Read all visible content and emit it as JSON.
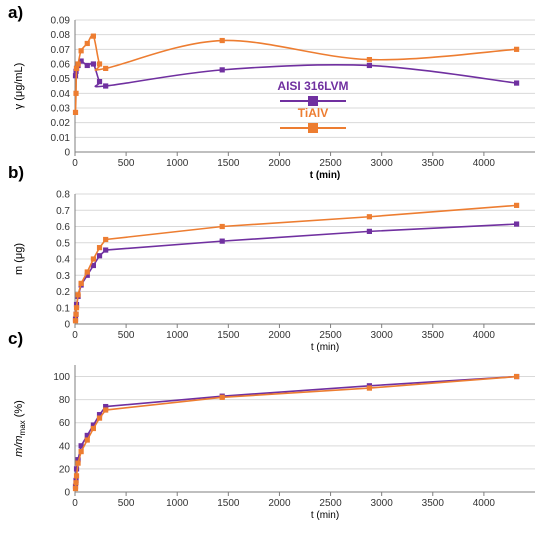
{
  "chart_data": [
    {
      "type": "line",
      "panel_label": "a)",
      "ylabel": "γ (μg/mL)",
      "xlabel": "t (min)",
      "xlim": [
        0,
        4500
      ],
      "ylim": [
        0,
        0.09
      ],
      "xticks": [
        0,
        500,
        1000,
        1500,
        2000,
        2500,
        3000,
        3500,
        4000
      ],
      "yticks": [
        0,
        0.01,
        0.02,
        0.03,
        0.04,
        0.05,
        0.06,
        0.07,
        0.08,
        0.09
      ],
      "ytick_labels": [
        "0",
        "0.01",
        "0.02",
        "0.03",
        "0.04",
        "0.05",
        "0.06",
        "0.07",
        "0.08",
        "0.09"
      ],
      "legend": {
        "placement": "center",
        "entries": [
          "AISI 316LVM",
          "TiAlV"
        ]
      },
      "series": [
        {
          "name": "AISI 316LVM",
          "color": "#7030A0",
          "x": [
            5,
            10,
            15,
            30,
            60,
            120,
            180,
            240,
            300,
            1440,
            2880,
            4320
          ],
          "y": [
            0.052,
            0.055,
            0.057,
            0.059,
            0.062,
            0.059,
            0.06,
            0.048,
            0.045,
            0.056,
            0.059,
            0.047
          ]
        },
        {
          "name": "TiAlV",
          "color": "#ED7D31",
          "x": [
            5,
            10,
            15,
            30,
            60,
            120,
            180,
            240,
            300,
            1440,
            2880,
            4320
          ],
          "y": [
            0.027,
            0.04,
            0.057,
            0.06,
            0.069,
            0.074,
            0.079,
            0.06,
            0.057,
            0.076,
            0.063,
            0.07
          ]
        }
      ]
    },
    {
      "type": "line",
      "panel_label": "b)",
      "ylabel": "m (μg)",
      "xlabel": "t (min)",
      "xlim": [
        0,
        4500
      ],
      "ylim": [
        0,
        0.8
      ],
      "xticks": [
        0,
        500,
        1000,
        1500,
        2000,
        2500,
        3000,
        3500,
        4000
      ],
      "yticks": [
        0,
        0.1,
        0.2,
        0.3,
        0.4,
        0.5,
        0.6,
        0.7,
        0.8
      ],
      "ytick_labels": [
        "0",
        "0.1",
        "0.2",
        "0.3",
        "0.4",
        "0.5",
        "0.6",
        "0.7",
        "0.8"
      ],
      "series": [
        {
          "name": "AISI 316LVM",
          "color": "#7030A0",
          "x": [
            5,
            10,
            15,
            30,
            60,
            120,
            180,
            240,
            300,
            1440,
            2880,
            4320
          ],
          "y": [
            0.03,
            0.06,
            0.12,
            0.17,
            0.24,
            0.3,
            0.36,
            0.42,
            0.455,
            0.51,
            0.57,
            0.615
          ]
        },
        {
          "name": "TiAlV",
          "color": "#ED7D31",
          "x": [
            5,
            10,
            15,
            30,
            60,
            120,
            180,
            240,
            300,
            1440,
            2880,
            4320
          ],
          "y": [
            0.02,
            0.06,
            0.1,
            0.18,
            0.25,
            0.32,
            0.4,
            0.47,
            0.52,
            0.6,
            0.66,
            0.73
          ]
        }
      ]
    },
    {
      "type": "line",
      "panel_label": "c)",
      "ylabel": "m/m_max (%)",
      "xlabel": "t (min)",
      "xlim": [
        0,
        4500
      ],
      "ylim": [
        0,
        110
      ],
      "xticks": [
        0,
        500,
        1000,
        1500,
        2000,
        2500,
        3000,
        3500,
        4000
      ],
      "yticks": [
        0,
        20,
        40,
        60,
        80,
        100
      ],
      "ytick_labels": [
        "0",
        "20",
        "40",
        "60",
        "80",
        "100"
      ],
      "series": [
        {
          "name": "AISI 316LVM",
          "color": "#7030A0",
          "x": [
            5,
            10,
            15,
            30,
            60,
            120,
            180,
            240,
            300,
            1440,
            2880,
            4320
          ],
          "y": [
            5,
            10,
            20,
            28,
            40,
            49,
            58,
            67,
            74,
            83,
            92,
            100
          ]
        },
        {
          "name": "TiAlV",
          "color": "#ED7D31",
          "x": [
            5,
            10,
            15,
            30,
            60,
            120,
            180,
            240,
            300,
            1440,
            2880,
            4320
          ],
          "y": [
            3,
            8,
            14,
            25,
            35,
            45,
            55,
            64,
            71,
            82,
            90,
            100
          ]
        }
      ]
    }
  ]
}
